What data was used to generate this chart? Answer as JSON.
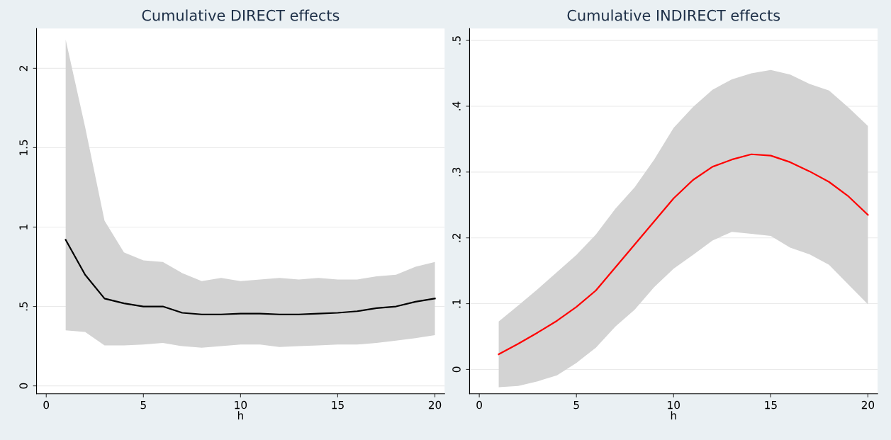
{
  "chart_data": [
    {
      "type": "line",
      "title": "Cumulative DIRECT effects",
      "xlabel": "h",
      "grid": "y",
      "x": [
        1,
        2,
        3,
        4,
        5,
        6,
        7,
        8,
        9,
        10,
        11,
        12,
        13,
        14,
        15,
        16,
        17,
        18,
        19,
        20
      ],
      "xlim": [
        -0.5,
        20.5
      ],
      "xticks": [
        0,
        5,
        10,
        15,
        20
      ],
      "ylim": [
        -0.05,
        2.25
      ],
      "yticks": [
        0,
        {
          "value": 0.5,
          "label": ".5"
        },
        1,
        1.5,
        2
      ],
      "series": [
        {
          "color": "#000000",
          "values": [
            0.92,
            0.7,
            0.55,
            0.52,
            0.5,
            0.5,
            0.46,
            0.45,
            0.45,
            0.455,
            0.455,
            0.45,
            0.45,
            0.455,
            0.46,
            0.47,
            0.49,
            0.5,
            0.53,
            0.55
          ],
          "lower": [
            0.35,
            0.34,
            0.255,
            0.255,
            0.26,
            0.27,
            0.25,
            0.24,
            0.25,
            0.26,
            0.26,
            0.245,
            0.25,
            0.255,
            0.26,
            0.26,
            0.27,
            0.285,
            0.3,
            0.32
          ],
          "upper": [
            2.18,
            1.63,
            1.04,
            0.84,
            0.79,
            0.78,
            0.71,
            0.66,
            0.68,
            0.66,
            0.67,
            0.68,
            0.67,
            0.68,
            0.67,
            0.67,
            0.69,
            0.7,
            0.75,
            0.78
          ]
        }
      ]
    },
    {
      "type": "line",
      "title": "Cumulative INDIRECT effects",
      "xlabel": "h",
      "grid": "y",
      "x": [
        1,
        2,
        3,
        4,
        5,
        6,
        7,
        8,
        9,
        10,
        11,
        12,
        13,
        14,
        15,
        16,
        17,
        18,
        19,
        20
      ],
      "xlim": [
        -0.5,
        20.5
      ],
      "xticks": [
        0,
        5,
        10,
        15,
        20
      ],
      "ylim": [
        -0.037,
        0.518
      ],
      "yticks": [
        0,
        {
          "value": 0.1,
          "label": ".1"
        },
        {
          "value": 0.2,
          "label": ".2"
        },
        {
          "value": 0.3,
          "label": ".3"
        },
        {
          "value": 0.4,
          "label": ".4"
        },
        {
          "value": 0.5,
          "label": ".5"
        }
      ],
      "series": [
        {
          "color": "#ff0000",
          "values": [
            0.023,
            0.039,
            0.056,
            0.074,
            0.095,
            0.12,
            0.155,
            0.19,
            0.225,
            0.26,
            0.288,
            0.308,
            0.319,
            0.327,
            0.325,
            0.315,
            0.301,
            0.285,
            0.263,
            0.235
          ],
          "lower": [
            -0.027,
            -0.025,
            -0.018,
            -0.009,
            0.01,
            0.033,
            0.065,
            0.091,
            0.125,
            0.153,
            0.174,
            0.196,
            0.209,
            0.206,
            0.203,
            0.185,
            0.175,
            0.159,
            0.129,
            0.099
          ],
          "upper": [
            0.073,
            0.097,
            0.122,
            0.148,
            0.174,
            0.205,
            0.244,
            0.277,
            0.319,
            0.367,
            0.399,
            0.425,
            0.441,
            0.45,
            0.455,
            0.448,
            0.434,
            0.424,
            0.398,
            0.37
          ]
        }
      ]
    }
  ]
}
